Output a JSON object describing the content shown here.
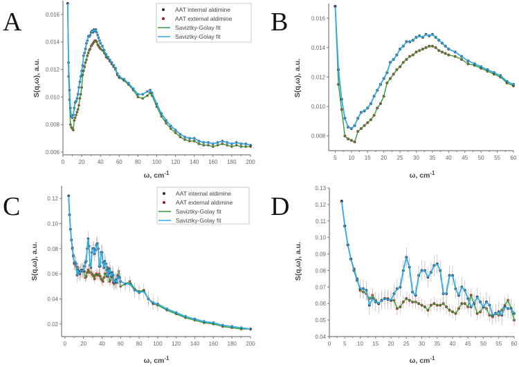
{
  "colors": {
    "internal": "#2b2b2b",
    "external": "#9a1b1b",
    "fit_external": "#2e9e3a",
    "fit_internal": "#2fa9e6",
    "axis": "#777777"
  },
  "chart_data": [
    {
      "panel": "A",
      "type": "scatter",
      "xlabel": "ω, cm",
      "xlabel_sup": "-1",
      "ylabel": "S(q,ω), a.u.",
      "xlim": [
        0,
        200
      ],
      "ylim": [
        0.0058,
        0.017
      ],
      "xticks": [
        0,
        20,
        40,
        60,
        80,
        100,
        120,
        140,
        160,
        180,
        200
      ],
      "xtick_labels": [
        "0",
        "20",
        "40",
        "60",
        "80",
        "100",
        "120",
        "140",
        "160",
        "180",
        "200"
      ],
      "yticks": [
        0.006,
        0.008,
        0.01,
        0.012,
        0.014,
        0.016
      ],
      "ytick_labels": [
        "0.006",
        "0.008",
        "0.010",
        "0.012",
        "0.014",
        "0.016"
      ],
      "legend_position": "top-right",
      "legend": [
        "AAT internal aldimine",
        "AAT external aldimine",
        "Saviztky-Golay fit",
        "Saviztky-Golay fit"
      ],
      "series": [
        {
          "name": "AAT internal aldimine",
          "fit": "Saviztky-Golay fit",
          "x": [
            5,
            6,
            7,
            8,
            9,
            10,
            11,
            12,
            13,
            14,
            15,
            16,
            17,
            18,
            19,
            20,
            21,
            22,
            23,
            24,
            25,
            26,
            27,
            28,
            29,
            30,
            31,
            32,
            33,
            34,
            35,
            36,
            37,
            38,
            39,
            40,
            42,
            44,
            46,
            48,
            50,
            52,
            54,
            56,
            58,
            60,
            65,
            70,
            75,
            80,
            85,
            90,
            93,
            95,
            100,
            105,
            110,
            115,
            120,
            125,
            130,
            135,
            140,
            145,
            150,
            155,
            160,
            165,
            170,
            175,
            180,
            185,
            190,
            195,
            200
          ],
          "y": [
            0.0168,
            0.0125,
            0.0105,
            0.0092,
            0.0086,
            0.0085,
            0.0087,
            0.0092,
            0.0096,
            0.0097,
            0.0099,
            0.0102,
            0.0107,
            0.0111,
            0.0115,
            0.0119,
            0.0123,
            0.013,
            0.0132,
            0.0135,
            0.0139,
            0.0141,
            0.0144,
            0.0144,
            0.0145,
            0.0147,
            0.0148,
            0.0147,
            0.0149,
            0.0148,
            0.0149,
            0.0147,
            0.0145,
            0.0143,
            0.0141,
            0.0139,
            0.0137,
            0.0134,
            0.0131,
            0.0129,
            0.0127,
            0.0125,
            0.0123,
            0.0121,
            0.0117,
            0.0115,
            0.0113,
            0.011,
            0.0106,
            0.0102,
            0.0102,
            0.0104,
            0.0105,
            0.0103,
            0.0095,
            0.0088,
            0.0083,
            0.0079,
            0.0076,
            0.0073,
            0.0071,
            0.007,
            0.007,
            0.0068,
            0.0067,
            0.0067,
            0.0066,
            0.0067,
            0.0068,
            0.0067,
            0.0066,
            0.0067,
            0.0066,
            0.0066,
            0.0065
          ]
        },
        {
          "name": "AAT external aldimine",
          "fit": "Saviztky-Golay fit",
          "x": [
            5,
            6,
            7,
            8,
            9,
            10,
            11,
            12,
            13,
            14,
            15,
            16,
            17,
            18,
            19,
            20,
            21,
            22,
            23,
            24,
            25,
            26,
            27,
            28,
            29,
            30,
            31,
            32,
            33,
            34,
            35,
            36,
            37,
            38,
            39,
            40,
            42,
            44,
            46,
            48,
            50,
            52,
            54,
            56,
            58,
            60,
            65,
            70,
            75,
            80,
            85,
            90,
            93,
            95,
            100,
            105,
            110,
            115,
            120,
            125,
            130,
            135,
            140,
            145,
            150,
            155,
            160,
            165,
            170,
            175,
            180,
            185,
            190,
            195,
            200
          ],
          "y": [
            0.0168,
            0.0115,
            0.0098,
            0.008,
            0.0078,
            0.0077,
            0.0076,
            0.0083,
            0.0085,
            0.0087,
            0.0089,
            0.0091,
            0.0094,
            0.0099,
            0.0102,
            0.0107,
            0.0116,
            0.0119,
            0.0122,
            0.0125,
            0.0127,
            0.013,
            0.0132,
            0.0134,
            0.0135,
            0.0137,
            0.0138,
            0.0139,
            0.014,
            0.0141,
            0.0141,
            0.014,
            0.0138,
            0.0137,
            0.0136,
            0.0135,
            0.0134,
            0.0132,
            0.0129,
            0.0128,
            0.0126,
            0.0124,
            0.0122,
            0.012,
            0.0116,
            0.0114,
            0.0112,
            0.0109,
            0.0105,
            0.01,
            0.0099,
            0.0101,
            0.0103,
            0.0101,
            0.0093,
            0.0086,
            0.0081,
            0.0077,
            0.0074,
            0.0071,
            0.0069,
            0.0068,
            0.0068,
            0.0066,
            0.0065,
            0.0065,
            0.0064,
            0.0065,
            0.0066,
            0.0065,
            0.0064,
            0.0065,
            0.0064,
            0.0064,
            0.0064
          ]
        }
      ]
    },
    {
      "panel": "B",
      "type": "scatter",
      "same_data_as": "A",
      "xlabel": "ω, cm",
      "xlabel_sup": "-1",
      "ylabel": "S(q,ω), a.u.",
      "xlim": [
        3,
        60
      ],
      "ylim": [
        0.007,
        0.017
      ],
      "xticks": [
        5,
        10,
        15,
        20,
        25,
        30,
        35,
        40,
        45,
        50,
        55,
        60
      ],
      "xtick_labels": [
        "5",
        "10",
        "15",
        "20",
        "25",
        "30",
        "35",
        "40",
        "45",
        "50",
        "55",
        "60"
      ],
      "yticks": [
        0.008,
        0.01,
        0.012,
        0.014,
        0.016
      ],
      "ytick_labels": [
        "0.008",
        "0.010",
        "0.012",
        "0.014",
        "0.016"
      ]
    },
    {
      "panel": "C",
      "type": "scatter",
      "xlabel": "ω, cm",
      "xlabel_sup": "-1",
      "ylabel": "S(q,ω), a.u.",
      "xlim": [
        -3.6,
        200
      ],
      "ylim": [
        0.01,
        0.13
      ],
      "xticks": [
        0,
        20,
        40,
        60,
        80,
        100,
        120,
        140,
        160,
        180,
        200
      ],
      "xtick_labels": [
        "0",
        "20",
        "40",
        "60",
        "80",
        "100",
        "120",
        "140",
        "160",
        "180",
        "200"
      ],
      "yticks": [
        0.02,
        0.04,
        0.06,
        0.08,
        0.1,
        0.12
      ],
      "ytick_labels": [
        "0.02",
        "0.04",
        "0.06",
        "0.08",
        "0.10",
        "0.12"
      ],
      "legend_position": "top-right",
      "legend": [
        "AAT internal aldimine",
        "AAT external aldimine",
        "Saviztky-Golay fit",
        "Saviztky-Golay fit"
      ],
      "series": [
        {
          "name": "AAT internal aldimine",
          "fit": "Saviztky-Golay fit",
          "error": 0.006,
          "x": [
            4,
            5,
            6,
            7,
            8,
            9,
            10,
            11,
            12,
            13,
            14,
            15,
            16,
            17,
            18,
            19,
            20,
            21,
            22,
            23,
            24,
            25,
            26,
            27,
            28,
            29,
            30,
            31,
            32,
            33,
            34,
            35,
            36,
            37,
            38,
            39,
            40,
            41,
            42,
            43,
            44,
            45,
            46,
            47,
            48,
            49,
            50,
            51,
            52,
            53,
            54,
            55,
            56,
            57,
            58,
            59,
            60,
            65,
            70,
            75,
            80,
            85,
            90,
            95,
            100,
            110,
            120,
            130,
            140,
            150,
            160,
            170,
            180,
            190,
            200
          ],
          "y": [
            0.122,
            0.107,
            0.0955,
            0.087,
            0.08,
            0.074,
            0.069,
            0.069,
            0.068,
            0.059,
            0.063,
            0.061,
            0.06,
            0.062,
            0.063,
            0.0625,
            0.062,
            0.066,
            0.069,
            0.07,
            0.08,
            0.088,
            0.082,
            0.067,
            0.065,
            0.077,
            0.08,
            0.08,
            0.076,
            0.079,
            0.083,
            0.084,
            0.08,
            0.066,
            0.066,
            0.077,
            0.077,
            0.069,
            0.065,
            0.07,
            0.068,
            0.063,
            0.058,
            0.06,
            0.064,
            0.061,
            0.058,
            0.061,
            0.059,
            0.053,
            0.054,
            0.055,
            0.053,
            0.058,
            0.057,
            0.057,
            0.054,
            0.052,
            0.052,
            0.047,
            0.045,
            0.046,
            0.04,
            0.037,
            0.036,
            0.032,
            0.029,
            0.026,
            0.024,
            0.022,
            0.021,
            0.019,
            0.018,
            0.017,
            0.016
          ]
        },
        {
          "name": "AAT external aldimine",
          "fit": "Saviztky-Golay fit",
          "error": 0.004,
          "x": [
            4,
            5,
            6,
            7,
            8,
            9,
            10,
            11,
            12,
            13,
            14,
            15,
            16,
            17,
            18,
            19,
            20,
            21,
            22,
            23,
            24,
            25,
            26,
            27,
            28,
            29,
            30,
            31,
            32,
            33,
            34,
            35,
            36,
            37,
            38,
            39,
            40,
            41,
            42,
            43,
            44,
            45,
            46,
            47,
            48,
            49,
            50,
            51,
            52,
            53,
            54,
            55,
            56,
            57,
            58,
            59,
            60,
            65,
            70,
            75,
            80,
            85,
            90,
            95,
            100,
            110,
            120,
            130,
            140,
            150,
            160,
            170,
            180,
            190,
            200
          ],
          "y": [
            0.122,
            0.107,
            0.0955,
            0.087,
            0.081,
            0.075,
            0.068,
            0.067,
            0.066,
            0.063,
            0.065,
            0.062,
            0.06,
            0.062,
            0.063,
            0.063,
            0.062,
            0.062,
            0.057,
            0.058,
            0.061,
            0.063,
            0.062,
            0.061,
            0.061,
            0.06,
            0.059,
            0.058,
            0.056,
            0.059,
            0.06,
            0.059,
            0.059,
            0.06,
            0.058,
            0.056,
            0.055,
            0.054,
            0.057,
            0.06,
            0.06,
            0.058,
            0.065,
            0.06,
            0.054,
            0.055,
            0.058,
            0.057,
            0.053,
            0.052,
            0.054,
            0.053,
            0.056,
            0.059,
            0.062,
            0.057,
            0.05,
            0.052,
            0.054,
            0.048,
            0.046,
            0.047,
            0.04,
            0.036,
            0.035,
            0.031,
            0.028,
            0.025,
            0.023,
            0.021,
            0.02,
            0.018,
            0.017,
            0.016,
            0.016
          ]
        }
      ]
    },
    {
      "panel": "D",
      "type": "scatter",
      "same_data_as": "C",
      "xlabel": "ω, cm",
      "xlabel_sup": "-1",
      "ylabel": "S(q,ω), a.u.",
      "xlim": [
        0,
        60
      ],
      "ylim": [
        0.04,
        0.13
      ],
      "xticks": [
        0,
        5,
        10,
        15,
        20,
        25,
        30,
        35,
        40,
        45,
        50,
        55,
        60
      ],
      "xtick_labels": [
        "0",
        "5",
        "10",
        "15",
        "20",
        "25",
        "30",
        "35",
        "40",
        "45",
        "50",
        "55",
        "60"
      ],
      "yticks": [
        0.04,
        0.05,
        0.06,
        0.07,
        0.08,
        0.09,
        0.1,
        0.11,
        0.12,
        0.13
      ],
      "ytick_labels": [
        "0.04",
        "0.05",
        "0.06",
        "0.07",
        "0.08",
        "0.09",
        "0.10",
        "0.11",
        "0.12",
        "0.13"
      ]
    }
  ]
}
